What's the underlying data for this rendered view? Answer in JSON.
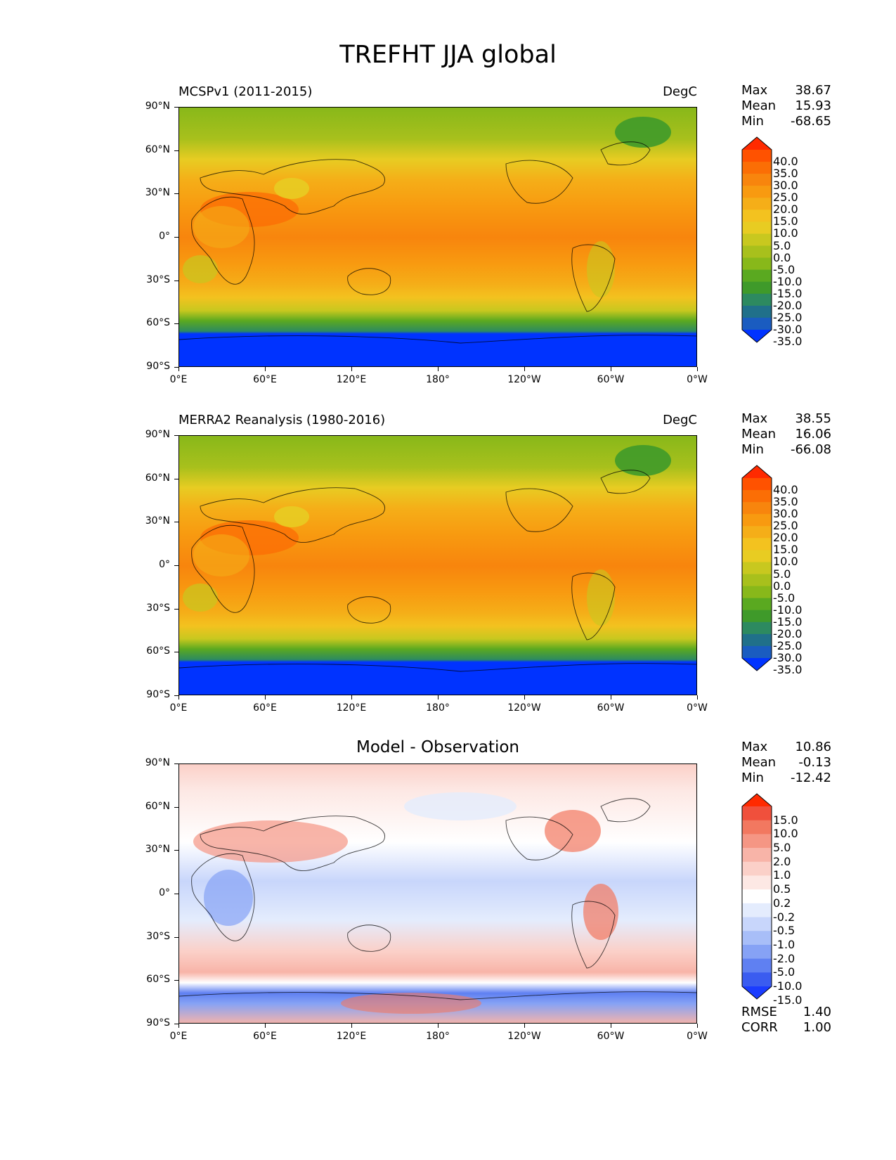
{
  "title": "TREFHT JJA global",
  "lat_labels": [
    "90°N",
    "60°N",
    "30°N",
    "0°",
    "30°S",
    "60°S",
    "90°S"
  ],
  "lon_labels": [
    "0°E",
    "60°E",
    "120°E",
    "180°",
    "120°W",
    "60°W",
    "0°W"
  ],
  "panels": [
    {
      "title": "MCSPv1 (2011-2015)",
      "units": "DegC",
      "stats": {
        "max_label": "Max",
        "max": "38.67",
        "mean_label": "Mean",
        "mean": "15.93",
        "min_label": "Min",
        "min": "-68.65"
      },
      "colorbar_labels": [
        "40.0",
        "35.0",
        "30.0",
        "25.0",
        "20.0",
        "15.0",
        "10.0",
        "5.0",
        "0.0",
        "-5.0",
        "-10.0",
        "-15.0",
        "-20.0",
        "-25.0",
        "-30.0",
        "-35.0"
      ],
      "colorbar_colors": [
        "#ff2a00",
        "#ff5200",
        "#fb6e05",
        "#f8850d",
        "#f89a10",
        "#f5ae18",
        "#f3c21f",
        "#e8cc22",
        "#c8c81f",
        "#a8c01c",
        "#88b81a",
        "#5aa920",
        "#3f9a2a",
        "#2d8a60",
        "#20708a",
        "#1a5cc0",
        "#0033ff"
      ]
    },
    {
      "title": "MERRA2 Reanalysis (1980-2016)",
      "units": "DegC",
      "stats": {
        "max_label": "Max",
        "max": "38.55",
        "mean_label": "Mean",
        "mean": "16.06",
        "min_label": "Min",
        "min": "-66.08"
      },
      "colorbar_labels": [
        "40.0",
        "35.0",
        "30.0",
        "25.0",
        "20.0",
        "15.0",
        "10.0",
        "5.0",
        "0.0",
        "-5.0",
        "-10.0",
        "-15.0",
        "-20.0",
        "-25.0",
        "-30.0",
        "-35.0"
      ],
      "colorbar_colors": [
        "#ff2a00",
        "#ff5200",
        "#fb6e05",
        "#f8850d",
        "#f89a10",
        "#f5ae18",
        "#f3c21f",
        "#e8cc22",
        "#c8c81f",
        "#a8c01c",
        "#88b81a",
        "#5aa920",
        "#3f9a2a",
        "#2d8a60",
        "#20708a",
        "#1a5cc0",
        "#0033ff"
      ]
    },
    {
      "title": "Model - Observation",
      "units": "",
      "stats": {
        "max_label": "Max",
        "max": "10.86",
        "mean_label": "Mean",
        "mean": "-0.13",
        "min_label": "Min",
        "min": "-12.42"
      },
      "colorbar_labels": [
        "15.0",
        "10.0",
        "5.0",
        "2.0",
        "1.0",
        "0.5",
        "0.2",
        "-0.2",
        "-0.5",
        "-1.0",
        "-2.0",
        "-5.0",
        "-10.0",
        "-15.0"
      ],
      "colorbar_colors": [
        "#ff2a00",
        "#f0503c",
        "#f27860",
        "#f59684",
        "#f8b4a8",
        "#fbd0c8",
        "#fde8e4",
        "#ffffff",
        "#e4ecfd",
        "#c8d6fb",
        "#a8bef8",
        "#86a2f5",
        "#5f80f2",
        "#3a5cf0",
        "#1a3cff"
      ],
      "rmse_label": "RMSE",
      "rmse": "1.40",
      "corr_label": "CORR",
      "corr": "1.00"
    }
  ]
}
